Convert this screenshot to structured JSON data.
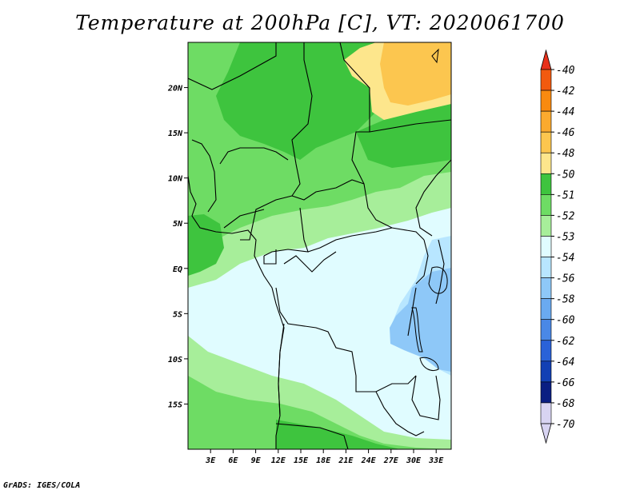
{
  "title": "Temperature at 200hPa [C], VT: 2020061700",
  "credit": "GrADS: IGES/COLA",
  "map": {
    "lon_labels": [
      "3E",
      "6E",
      "9E",
      "12E",
      "15E",
      "18E",
      "21E",
      "24E",
      "27E",
      "30E",
      "33E"
    ],
    "lat_labels": [
      "20N",
      "15N",
      "10N",
      "5N",
      "EQ",
      "5S",
      "10S",
      "15S"
    ],
    "lon_range": [
      0,
      35
    ],
    "lat_range": [
      -20,
      25
    ]
  },
  "colorbar": {
    "labels": [
      "-40",
      "-42",
      "-44",
      "-46",
      "-48",
      "-50",
      "-51",
      "-52",
      "-53",
      "-54",
      "-56",
      "-58",
      "-60",
      "-62",
      "-64",
      "-66",
      "-68",
      "-70"
    ],
    "colors": [
      "#e8301a",
      "#f25a0f",
      "#f98a0f",
      "#fbaa2e",
      "#fcc64f",
      "#fde68c",
      "#3ec43e",
      "#6edc64",
      "#a7ee9a",
      "#e0fcff",
      "#b8e6ff",
      "#8ec8f8",
      "#6aaaf0",
      "#4a88e6",
      "#2a62d8",
      "#1240b4",
      "#0a1e82",
      "#d8d4f2"
    ]
  },
  "colors": {
    "land_bg": "#e0fcff",
    "border": "#000000"
  }
}
